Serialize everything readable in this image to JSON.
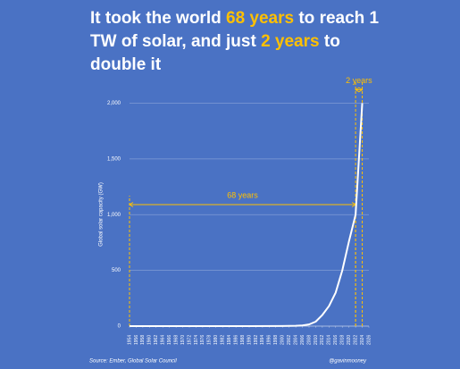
{
  "chart_data": {
    "type": "line",
    "title": [
      {
        "text": "It took the world ",
        "color": "#ffffff"
      },
      {
        "text": "68 years",
        "color": "#ffc000"
      },
      {
        "text": " to reach 1 TW of solar, and just ",
        "color": "#ffffff"
      },
      {
        "text": "2 years",
        "color": "#ffc000"
      },
      {
        "text": " to double it",
        "color": "#ffffff"
      }
    ],
    "y_label": "Global solar capacity (GW)",
    "x": [
      1954,
      1970,
      1990,
      2000,
      2004,
      2006,
      2008,
      2010,
      2012,
      2014,
      2016,
      2018,
      2020,
      2022,
      2023,
      2024
    ],
    "values": [
      0,
      0,
      0,
      1,
      3,
      6,
      15,
      40,
      100,
      180,
      300,
      500,
      760,
      1000,
      1500,
      2000
    ],
    "color": "#ffffff",
    "xlim": [
      1954,
      2026
    ],
    "xticks": [
      1954,
      1956,
      1958,
      1960,
      1962,
      1964,
      1966,
      1968,
      1970,
      1972,
      1974,
      1976,
      1978,
      1980,
      1982,
      1984,
      1986,
      1988,
      1990,
      1992,
      1994,
      1996,
      1998,
      2000,
      2002,
      2004,
      2006,
      2008,
      2010,
      2012,
      2014,
      2016,
      2018,
      2020,
      2022,
      2024,
      2026
    ],
    "ylim": [
      0,
      2100
    ],
    "yticks": [
      0,
      500,
      {
        "value": 1000,
        "label": "1,000"
      },
      {
        "value": 1500,
        "label": "1,500"
      },
      {
        "value": 2000,
        "label": "2,000"
      }
    ],
    "grid": true,
    "annotations": [
      {
        "text": "68 years",
        "x": [
          1954,
          2022
        ],
        "y": 1090,
        "color": "#ffc000"
      },
      {
        "text": "2 years",
        "x": [
          2022,
          2024
        ],
        "y": 2120,
        "color": "#ffc000"
      }
    ],
    "source": "Source: Ember, Global Solar Council",
    "credit": "@gavinmooney"
  }
}
